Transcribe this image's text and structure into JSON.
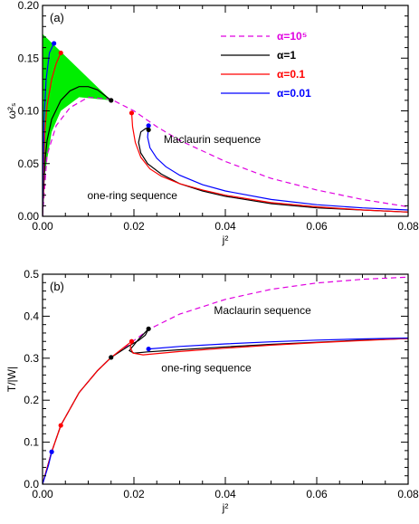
{
  "colors": {
    "magenta": "#e000e0",
    "black": "#000000",
    "red": "#ff0000",
    "blue": "#0000ff",
    "green_fill": "#00ee00"
  },
  "chart_data": [
    {
      "type": "line",
      "panel_label": "(a)",
      "xlabel": "j²",
      "ylabel": "ω²ₛ",
      "xlim": [
        0,
        0.08
      ],
      "ylim": [
        0,
        0.2
      ],
      "xticks": [
        0.0,
        0.02,
        0.04,
        0.06,
        0.08
      ],
      "xtick_labels": [
        "0.00",
        "0.02",
        "0.04",
        "0.06",
        "0.08"
      ],
      "yticks": [
        0.0,
        0.05,
        0.1,
        0.15,
        0.2
      ],
      "ytick_labels": [
        "0.00",
        "0.05",
        "0.10",
        "0.15",
        "0.20"
      ],
      "grid": false,
      "legend_position": "top-right",
      "legend": [
        {
          "label": "α=10⁵",
          "color": "#e000e0",
          "dash": true
        },
        {
          "label": "α=1",
          "color": "#000000",
          "dash": false
        },
        {
          "label": "α=0.1",
          "color": "#ff0000",
          "dash": false
        },
        {
          "label": "α=0.01",
          "color": "#0000ff",
          "dash": false
        }
      ],
      "annotations": [
        {
          "text": "Maclaurin sequence",
          "x": 0.0265,
          "y": 0.0695
        },
        {
          "text": "one-ring sequence",
          "x": 0.0098,
          "y": 0.0165
        }
      ],
      "shaded_region": {
        "color": "#00ee00",
        "points": [
          [
            0.0,
            0.173
          ],
          [
            0.015,
            0.11
          ],
          [
            0.008,
            0.113
          ],
          [
            0.004,
            0.1
          ],
          [
            0.002,
            0.08
          ],
          [
            0.0005,
            0.04
          ],
          [
            0.0,
            0.0
          ]
        ]
      },
      "series": [
        {
          "color": "#e000e0",
          "dash": true,
          "points": [
            [
              0.0,
              0.0
            ],
            [
              0.001,
              0.058
            ],
            [
              0.003,
              0.086
            ],
            [
              0.006,
              0.103
            ],
            [
              0.01,
              0.113
            ],
            [
              0.015,
              0.111
            ],
            [
              0.02,
              0.1
            ],
            [
              0.025,
              0.085
            ],
            [
              0.03,
              0.072
            ],
            [
              0.04,
              0.052
            ],
            [
              0.05,
              0.036
            ],
            [
              0.06,
              0.025
            ],
            [
              0.07,
              0.016
            ],
            [
              0.08,
              0.009
            ]
          ]
        },
        {
          "color": "#000000",
          "dash": false,
          "points": [
            [
              0.0,
              0.0
            ],
            [
              0.0005,
              0.05
            ],
            [
              0.001,
              0.072
            ],
            [
              0.002,
              0.092
            ],
            [
              0.004,
              0.11
            ],
            [
              0.006,
              0.119
            ],
            [
              0.008,
              0.123
            ],
            [
              0.01,
              0.123
            ],
            [
              0.012,
              0.12
            ],
            [
              0.015,
              0.11
            ]
          ]
        },
        {
          "color": "#000000",
          "dash": false,
          "points": [
            [
              0.0232,
              0.081
            ],
            [
              0.023,
              0.084
            ],
            [
              0.0225,
              0.083
            ],
            [
              0.0215,
              0.08
            ],
            [
              0.021,
              0.07
            ],
            [
              0.0215,
              0.06
            ],
            [
              0.023,
              0.05
            ],
            [
              0.026,
              0.04
            ],
            [
              0.03,
              0.031
            ],
            [
              0.035,
              0.024
            ],
            [
              0.04,
              0.019
            ],
            [
              0.05,
              0.012
            ],
            [
              0.06,
              0.008
            ],
            [
              0.07,
              0.006
            ],
            [
              0.08,
              0.004
            ]
          ]
        },
        {
          "color": "#ff0000",
          "dash": false,
          "points": [
            [
              0.0,
              0.0
            ],
            [
              0.0005,
              0.08
            ],
            [
              0.001,
              0.105
            ],
            [
              0.002,
              0.13
            ],
            [
              0.003,
              0.145
            ],
            [
              0.004,
              0.155
            ]
          ]
        },
        {
          "color": "#ff0000",
          "dash": false,
          "points": [
            [
              0.0195,
              0.098
            ],
            [
              0.0197,
              0.085
            ],
            [
              0.0203,
              0.07
            ],
            [
              0.0215,
              0.056
            ],
            [
              0.0235,
              0.045
            ],
            [
              0.026,
              0.038
            ],
            [
              0.03,
              0.031
            ],
            [
              0.035,
              0.025
            ],
            [
              0.04,
              0.02
            ],
            [
              0.05,
              0.013
            ],
            [
              0.06,
              0.009
            ],
            [
              0.07,
              0.006
            ],
            [
              0.08,
              0.004
            ]
          ]
        },
        {
          "color": "#0000ff",
          "dash": false,
          "points": [
            [
              0.0,
              0.0
            ],
            [
              0.0003,
              0.09
            ],
            [
              0.0008,
              0.13
            ],
            [
              0.0015,
              0.155
            ],
            [
              0.0025,
              0.164
            ]
          ]
        },
        {
          "color": "#0000ff",
          "dash": false,
          "points": [
            [
              0.0232,
              0.086
            ],
            [
              0.023,
              0.075
            ],
            [
              0.0235,
              0.065
            ],
            [
              0.025,
              0.055
            ],
            [
              0.027,
              0.047
            ],
            [
              0.03,
              0.039
            ],
            [
              0.035,
              0.03
            ],
            [
              0.04,
              0.024
            ],
            [
              0.05,
              0.016
            ],
            [
              0.06,
              0.011
            ],
            [
              0.07,
              0.008
            ],
            [
              0.08,
              0.006
            ]
          ]
        }
      ],
      "markers": [
        {
          "x": 0.0025,
          "y": 0.164,
          "color": "#0000ff"
        },
        {
          "x": 0.004,
          "y": 0.155,
          "color": "#ff0000"
        },
        {
          "x": 0.015,
          "y": 0.11,
          "color": "#000000"
        },
        {
          "x": 0.0195,
          "y": 0.098,
          "color": "#ff0000"
        },
        {
          "x": 0.0232,
          "y": 0.086,
          "color": "#0000ff"
        },
        {
          "x": 0.0232,
          "y": 0.082,
          "color": "#000000"
        }
      ]
    },
    {
      "type": "line",
      "panel_label": "(b)",
      "xlabel": "j²",
      "ylabel": "T/|W|",
      "xlim": [
        0,
        0.08
      ],
      "ylim": [
        0,
        0.5
      ],
      "xticks": [
        0.0,
        0.02,
        0.04,
        0.06,
        0.08
      ],
      "xtick_labels": [
        "0.00",
        "0.02",
        "0.04",
        "0.06",
        "0.08"
      ],
      "yticks": [
        0.0,
        0.1,
        0.2,
        0.3,
        0.4,
        0.5
      ],
      "ytick_labels": [
        "0.0",
        "0.1",
        "0.2",
        "0.3",
        "0.4",
        "0.5"
      ],
      "grid": false,
      "annotations": [
        {
          "text": "Maclaurin sequence",
          "x": 0.0375,
          "y": 0.405
        },
        {
          "text": "one-ring sequence",
          "x": 0.026,
          "y": 0.268
        }
      ],
      "series": [
        {
          "color": "#e000e0",
          "dash": true,
          "points": [
            [
              0.0,
              0.0
            ],
            [
              0.002,
              0.077
            ],
            [
              0.004,
              0.14
            ],
            [
              0.008,
              0.218
            ],
            [
              0.012,
              0.27
            ],
            [
              0.015,
              0.302
            ],
            [
              0.02,
              0.342
            ],
            [
              0.0235,
              0.37
            ],
            [
              0.03,
              0.405
            ],
            [
              0.04,
              0.44
            ],
            [
              0.05,
              0.464
            ],
            [
              0.06,
              0.479
            ],
            [
              0.07,
              0.488
            ],
            [
              0.08,
              0.493
            ]
          ]
        },
        {
          "color": "#000000",
          "dash": false,
          "points": [
            [
              0.0,
              0.0
            ],
            [
              0.002,
              0.077
            ],
            [
              0.004,
              0.14
            ],
            [
              0.008,
              0.218
            ],
            [
              0.012,
              0.27
            ],
            [
              0.015,
              0.302
            ],
            [
              0.019,
              0.33
            ],
            [
              0.021,
              0.342
            ],
            [
              0.0225,
              0.355
            ],
            [
              0.0232,
              0.37
            ]
          ]
        },
        {
          "color": "#000000",
          "dash": false,
          "points": [
            [
              0.0232,
              0.37
            ],
            [
              0.021,
              0.345
            ],
            [
              0.019,
              0.318
            ],
            [
              0.02,
              0.312
            ],
            [
              0.023,
              0.315
            ],
            [
              0.03,
              0.32
            ],
            [
              0.04,
              0.327
            ],
            [
              0.05,
              0.333
            ],
            [
              0.06,
              0.338
            ],
            [
              0.07,
              0.343
            ],
            [
              0.08,
              0.347
            ]
          ]
        },
        {
          "color": "#ff0000",
          "dash": false,
          "points": [
            [
              0.0,
              0.0
            ],
            [
              0.002,
              0.077
            ],
            [
              0.004,
              0.14
            ],
            [
              0.008,
              0.218
            ],
            [
              0.012,
              0.27
            ],
            [
              0.015,
              0.302
            ],
            [
              0.0195,
              0.34
            ]
          ]
        },
        {
          "color": "#ff0000",
          "dash": false,
          "points": [
            [
              0.0195,
              0.34
            ],
            [
              0.0192,
              0.325
            ],
            [
              0.0198,
              0.312
            ],
            [
              0.022,
              0.308
            ],
            [
              0.03,
              0.316
            ],
            [
              0.04,
              0.324
            ],
            [
              0.05,
              0.331
            ],
            [
              0.06,
              0.337
            ],
            [
              0.07,
              0.342
            ],
            [
              0.08,
              0.347
            ]
          ]
        },
        {
          "color": "#0000ff",
          "dash": false,
          "points": [
            [
              0.0,
              0.0
            ],
            [
              0.0013,
              0.045
            ],
            [
              0.002,
              0.077
            ]
          ]
        },
        {
          "color": "#0000ff",
          "dash": false,
          "points": [
            [
              0.0232,
              0.322
            ],
            [
              0.03,
              0.328
            ],
            [
              0.04,
              0.334
            ],
            [
              0.05,
              0.339
            ],
            [
              0.06,
              0.343
            ],
            [
              0.07,
              0.346
            ],
            [
              0.08,
              0.348
            ]
          ]
        }
      ],
      "markers": [
        {
          "x": 0.002,
          "y": 0.077,
          "color": "#0000ff"
        },
        {
          "x": 0.004,
          "y": 0.14,
          "color": "#ff0000"
        },
        {
          "x": 0.015,
          "y": 0.302,
          "color": "#000000"
        },
        {
          "x": 0.0195,
          "y": 0.34,
          "color": "#ff0000"
        },
        {
          "x": 0.0232,
          "y": 0.37,
          "color": "#000000"
        },
        {
          "x": 0.0232,
          "y": 0.322,
          "color": "#0000ff"
        }
      ]
    }
  ]
}
